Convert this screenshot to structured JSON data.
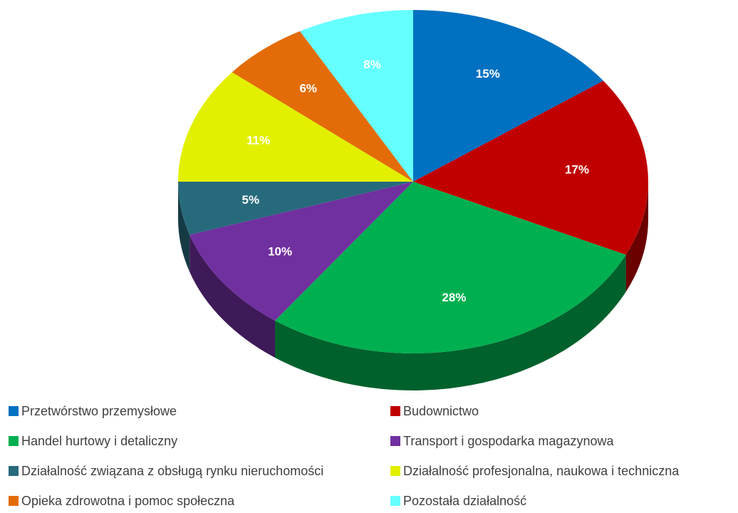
{
  "chart_data": {
    "type": "pie",
    "categories": [
      "Przetwórstwo przemysłowe",
      "Budownictwo",
      "Handel hurtowy i detaliczny",
      "Transport i gospodarka magazynowa",
      "Działalność związana z obsługą rynku nieruchomości",
      "Działalność profesjonalna, naukowa i techniczna",
      "Opieka zdrowotna i pomoc społeczna",
      "Pozostała działalność"
    ],
    "values": [
      15,
      17,
      28,
      10,
      5,
      11,
      6,
      8
    ],
    "value_labels": [
      "15%",
      "17%",
      "28%",
      "10%",
      "5%",
      "11%",
      "6%",
      "8%"
    ],
    "colors": [
      "#0070c0",
      "#c00000",
      "#00b050",
      "#7030a0",
      "#276a7c",
      "#e2f000",
      "#e36c09",
      "#66ffff"
    ],
    "legend": "bottom"
  }
}
